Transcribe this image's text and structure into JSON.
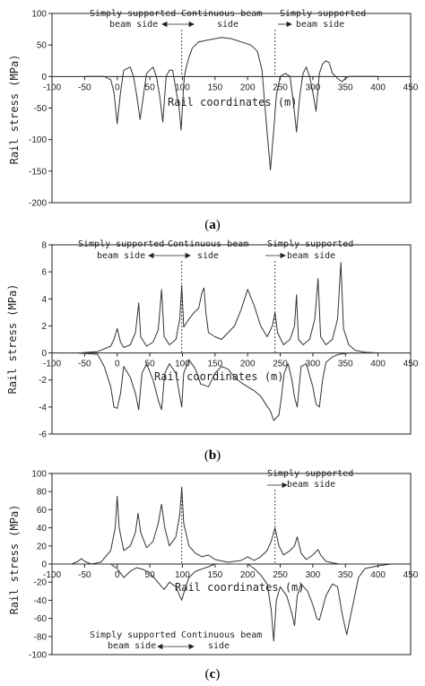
{
  "chart_data": [
    {
      "type": "line",
      "panel_label": {
        "open": "(",
        "letter": "a",
        "close": ")"
      },
      "title": "",
      "xlabel": "Rail coordinates (m)",
      "ylabel": "Rail stress (MPa)",
      "xlim": [
        -100,
        450
      ],
      "ylim": [
        -200,
        100
      ],
      "xticks": [
        -100,
        -50,
        0,
        50,
        100,
        150,
        200,
        250,
        300,
        350,
        400,
        450
      ],
      "yticks": [
        -200,
        -150,
        -100,
        -50,
        0,
        50,
        100
      ],
      "annotations": {
        "left": [
          "Simply supported",
          "beam side"
        ],
        "middle": [
          "Continuous beam",
          "side"
        ],
        "right": [
          "Simply supported",
          "beam side"
        ]
      },
      "dividers_x": [
        99,
        242
      ],
      "series": [
        {
          "x": [
            -50,
            -20,
            -10,
            -5,
            0,
            5,
            10,
            20,
            25,
            30,
            35,
            45,
            55,
            60,
            65,
            70,
            75,
            80,
            85,
            95,
            98,
            101,
            103,
            106,
            110,
            115,
            125,
            140,
            160,
            175,
            190,
            205,
            215,
            222,
            226,
            230,
            235,
            240,
            244,
            250,
            258,
            265,
            270,
            275,
            280,
            285,
            290,
            295,
            300,
            305,
            310,
            315,
            320,
            325,
            330,
            335,
            340,
            345,
            350,
            355,
            360,
            380,
            400
          ],
          "y": [
            0,
            0,
            -5,
            -25,
            -75,
            -25,
            10,
            15,
            0,
            -30,
            -68,
            5,
            15,
            0,
            -30,
            -72,
            0,
            10,
            10,
            -50,
            -85,
            -30,
            0,
            15,
            30,
            45,
            55,
            58,
            62,
            60,
            55,
            50,
            40,
            10,
            -40,
            -90,
            -148,
            -85,
            -30,
            0,
            5,
            0,
            -40,
            -88,
            -30,
            5,
            15,
            0,
            -25,
            -55,
            5,
            20,
            25,
            22,
            5,
            0,
            -5,
            -8,
            -3,
            0,
            0,
            0,
            0
          ]
        }
      ]
    },
    {
      "type": "line",
      "panel_label": {
        "open": "(",
        "letter": "b",
        "close": ")"
      },
      "title": "",
      "xlabel": "Rail coordinates (m)",
      "ylabel": "Rail stress (MPa)",
      "xlim": [
        -100,
        450
      ],
      "ylim": [
        -6,
        8
      ],
      "xticks": [
        -100,
        -50,
        0,
        50,
        100,
        150,
        200,
        250,
        300,
        350,
        400,
        450
      ],
      "yticks": [
        -6,
        -4,
        -2,
        0,
        2,
        4,
        6,
        8
      ],
      "annotations": {
        "left": [
          "Simply supported",
          "beam side"
        ],
        "middle": [
          "Continuous beam",
          "side"
        ],
        "right": [
          "Simply supported",
          "beam side"
        ]
      },
      "dividers_x": [
        99,
        242
      ],
      "series": [
        {
          "x": [
            -60,
            -30,
            -10,
            -5,
            0,
            5,
            10,
            20,
            28,
            33,
            36,
            45,
            55,
            63,
            68,
            72,
            80,
            90,
            96,
            99,
            102,
            110,
            118,
            125,
            130,
            133,
            136,
            140,
            150,
            160,
            170,
            180,
            190,
            200,
            210,
            220,
            230,
            238,
            242,
            246,
            255,
            265,
            272,
            275,
            278,
            285,
            295,
            303,
            308,
            312,
            320,
            330,
            338,
            343,
            347,
            355,
            365,
            380,
            400
          ],
          "y": [
            0,
            0.1,
            0.5,
            1.0,
            1.8,
            0.8,
            0.4,
            0.6,
            1.5,
            3.7,
            1.2,
            0.5,
            0.8,
            1.7,
            4.7,
            1.2,
            0.6,
            1.0,
            2.5,
            5.0,
            1.9,
            2.5,
            3.0,
            3.3,
            4.5,
            4.8,
            3.0,
            1.5,
            1.2,
            1.0,
            1.5,
            2.0,
            3.2,
            4.7,
            3.5,
            2.0,
            1.2,
            2.0,
            3.0,
            1.5,
            0.6,
            1.0,
            2.0,
            4.3,
            1.0,
            0.6,
            1.0,
            2.5,
            5.5,
            1.2,
            0.6,
            1.0,
            2.5,
            6.7,
            1.8,
            0.6,
            0.2,
            0.05,
            0
          ]
        },
        {
          "x": [
            -60,
            -30,
            -20,
            -10,
            -5,
            0,
            5,
            10,
            20,
            28,
            33,
            38,
            45,
            55,
            63,
            68,
            73,
            80,
            90,
            96,
            99,
            102,
            110,
            120,
            128,
            140,
            150,
            160,
            170,
            180,
            190,
            200,
            210,
            220,
            228,
            235,
            240,
            248,
            252,
            256,
            262,
            268,
            272,
            276,
            282,
            290,
            300,
            305,
            310,
            315,
            320,
            330,
            340,
            355,
            380,
            400
          ],
          "y": [
            0,
            -0.1,
            -1.0,
            -2.5,
            -4.0,
            -4.1,
            -3.0,
            -1.0,
            -1.8,
            -3.0,
            -4.2,
            -1.5,
            -0.8,
            -2.0,
            -3.5,
            -4.2,
            -1.5,
            -0.8,
            -1.5,
            -3.2,
            -4.0,
            -1.5,
            -0.5,
            -1.2,
            -2.3,
            -2.5,
            -1.5,
            -1.0,
            -1.2,
            -1.8,
            -2.2,
            -2.5,
            -2.8,
            -3.2,
            -3.8,
            -4.3,
            -5.0,
            -4.6,
            -3.2,
            -1.5,
            -0.8,
            -2.0,
            -3.3,
            -4.0,
            -1.0,
            -0.8,
            -2.5,
            -3.8,
            -4.0,
            -2.0,
            -0.7,
            -0.3,
            -0.1,
            0,
            0,
            0
          ]
        }
      ]
    },
    {
      "type": "line",
      "panel_label": {
        "open": "(",
        "letter": "c",
        "close": ")"
      },
      "title": "",
      "xlabel": "Rail coordinates (m)",
      "ylabel": "Rail stress (MPa)",
      "xlim": [
        -100,
        450
      ],
      "ylim": [
        -100,
        100
      ],
      "xticks": [
        -100,
        -50,
        0,
        50,
        100,
        150,
        200,
        250,
        300,
        350,
        400,
        450
      ],
      "yticks": [
        -100,
        -80,
        -60,
        -40,
        -20,
        0,
        20,
        40,
        60,
        80,
        100
      ],
      "annotations": {
        "left": [
          "Simply supported",
          "beam side"
        ],
        "middle": [
          "Continuous beam",
          "side"
        ],
        "right": [
          "Simply supported",
          "beam side"
        ]
      },
      "dividers_x": [
        99,
        242
      ],
      "series": [
        {
          "x": [
            -100,
            -70,
            -60,
            -55,
            -50,
            -40,
            -25,
            -10,
            -3,
            0,
            3,
            10,
            20,
            28,
            32,
            36,
            45,
            55,
            63,
            68,
            73,
            80,
            90,
            96,
            99,
            102,
            110,
            120,
            130,
            140,
            150,
            170,
            190,
            200,
            210,
            220,
            230,
            236,
            242,
            248,
            255,
            265,
            272,
            276,
            282,
            290,
            300,
            308,
            312,
            320,
            340,
            400
          ],
          "y": [
            0,
            0,
            3,
            6,
            3,
            0,
            2,
            15,
            40,
            75,
            40,
            15,
            20,
            35,
            56,
            35,
            18,
            25,
            45,
            66,
            40,
            20,
            30,
            55,
            85,
            45,
            20,
            12,
            8,
            10,
            5,
            2,
            4,
            8,
            4,
            8,
            15,
            25,
            40,
            20,
            10,
            15,
            20,
            30,
            12,
            5,
            10,
            16,
            10,
            3,
            0,
            0
          ]
        },
        {
          "x": [
            -100,
            -10,
            0,
            10,
            20,
            30,
            40,
            50,
            60,
            68,
            72,
            80,
            90,
            96,
            99,
            103,
            110,
            120,
            140,
            150,
            160,
            200,
            210,
            220,
            230,
            236,
            240,
            244,
            250,
            260,
            268,
            272,
            276,
            282,
            292,
            300,
            306,
            310,
            320,
            330,
            338,
            345,
            352,
            370,
            380,
            400,
            420
          ],
          "y": [
            0,
            0,
            -5,
            -15,
            -8,
            -4,
            -6,
            -10,
            -18,
            -25,
            -28,
            -20,
            -25,
            -35,
            -40,
            -30,
            -15,
            -8,
            -3,
            0,
            0,
            0,
            -5,
            -12,
            -22,
            -50,
            -85,
            -40,
            -25,
            -35,
            -55,
            -68,
            -35,
            -22,
            -30,
            -45,
            -60,
            -62,
            -35,
            -22,
            -25,
            -55,
            -78,
            -15,
            -5,
            -2,
            0
          ]
        }
      ]
    }
  ]
}
